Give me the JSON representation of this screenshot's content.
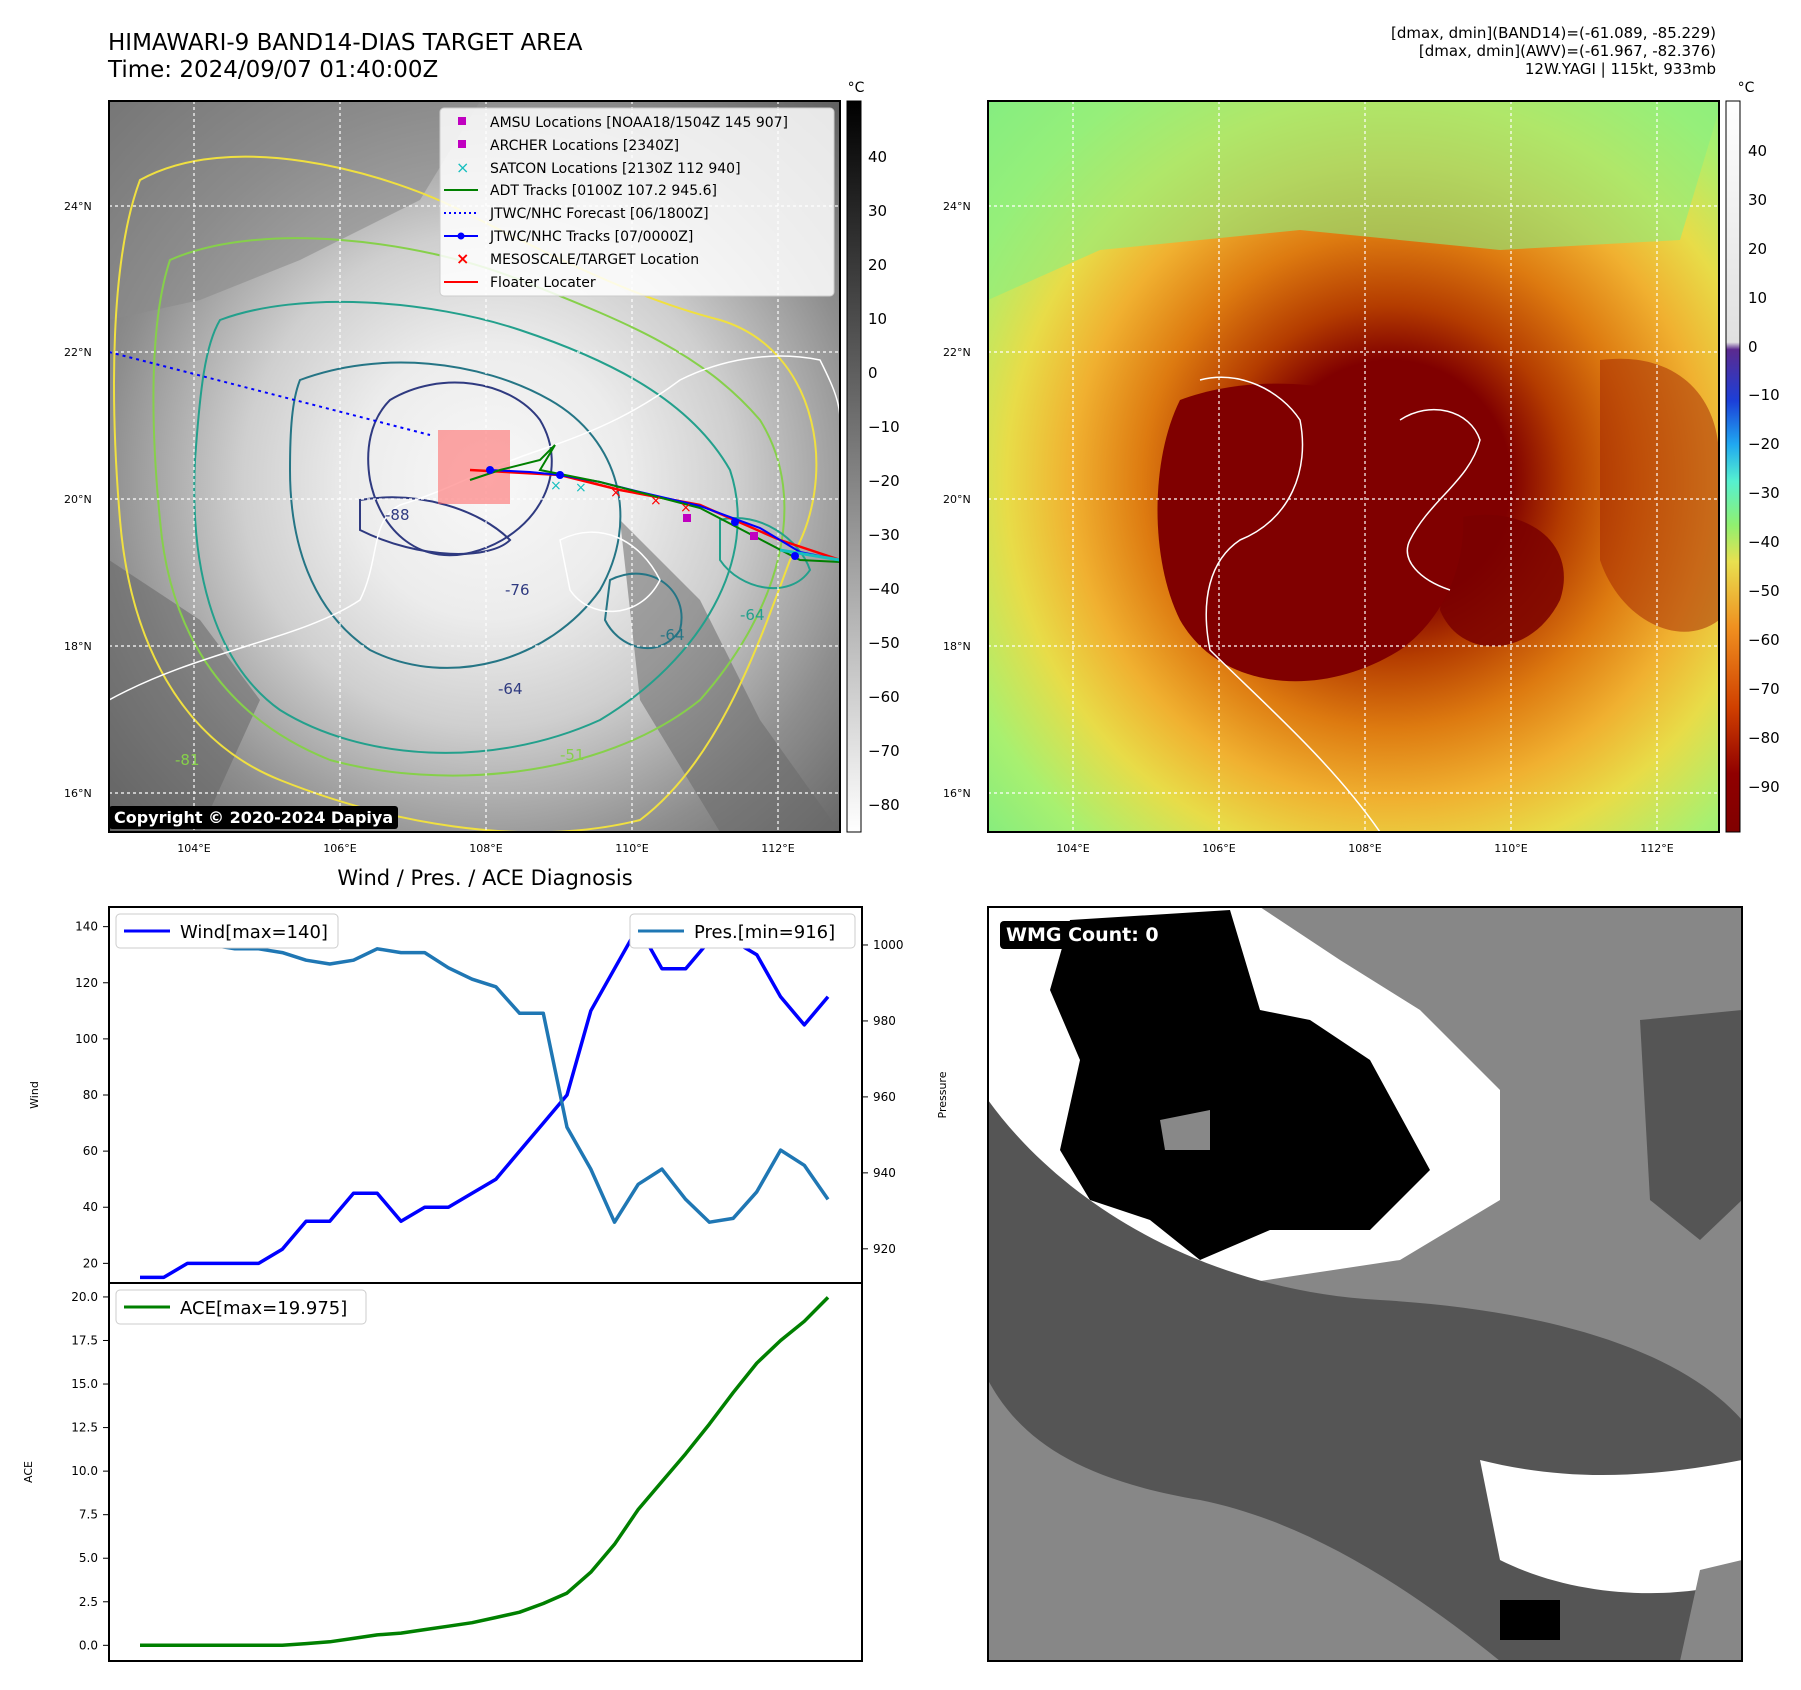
{
  "header": {
    "title_line1": "HIMAWARI-9 BAND14-DIAS TARGET AREA",
    "title_line2": "Time: 2024/09/07 01:40:00Z",
    "info_line1": "[dmax, dmin](BAND14)=(-61.089, -85.229)",
    "info_line2": "[dmax, dmin](AWV)=(-61.967, -82.376)",
    "info_line3": "12W.YAGI | 115kt, 933mb"
  },
  "map": {
    "lat_labels": [
      "24°N",
      "22°N",
      "20°N",
      "18°N",
      "16°N"
    ],
    "lon_labels": [
      "104°E",
      "106°E",
      "108°E",
      "110°E",
      "112°E"
    ],
    "copyright": "Copyright © 2020-2024 Dapiya",
    "legend": [
      {
        "label": "AMSU Locations [NOAA18/1504Z 145 907]",
        "color": "#c000c0",
        "marker": "square"
      },
      {
        "label": "ARCHER Locations [2340Z]",
        "color": "#c000c0",
        "marker": "square"
      },
      {
        "label": "SATCON Locations [2130Z 112 940]",
        "color": "#17bfbf",
        "marker": "x"
      },
      {
        "label": "ADT Tracks [0100Z 107.2 945.6]",
        "color": "#008000",
        "marker": "line"
      },
      {
        "label": "JTWC/NHC Forecast [06/1800Z]",
        "color": "#0000ff",
        "marker": "dotted"
      },
      {
        "label": "JTWC/NHC Tracks [07/0000Z]",
        "color": "#0000ff",
        "marker": "line-dot"
      },
      {
        "label": "MESOSCALE/TARGET Location",
        "color": "#ff0000",
        "marker": "x"
      },
      {
        "label": "Floater Locater",
        "color": "#ff0000",
        "marker": "line"
      }
    ],
    "contour_labels": [
      "-64",
      "-64",
      "-64",
      "-76",
      "-88",
      "-81",
      "-51"
    ],
    "cbar_unit": "°C",
    "cbar_left_ticks": [
      "40",
      "30",
      "20",
      "10",
      "0",
      "−10",
      "−20",
      "−30",
      "−40",
      "−50",
      "−60",
      "−70",
      "−80"
    ],
    "cbar_right_ticks": [
      "40",
      "30",
      "20",
      "10",
      "0",
      "−10",
      "−20",
      "−30",
      "−40",
      "−50",
      "−60",
      "−70",
      "−80",
      "−90"
    ]
  },
  "diagnosis": {
    "title": "Wind / Pres. / ACE Diagnosis",
    "wind_ylabel": "Wind",
    "pres_ylabel": "Pressure",
    "ace_ylabel": "ACE",
    "wind_legend": "Wind[max=140]",
    "pres_legend": "Pres.[min=916]",
    "ace_legend": "ACE[max=19.975]",
    "wmg_label": "WMG Count: 0",
    "colors": {
      "wind": "#0000ff",
      "pres": "#1f77b4",
      "ace": "#008000"
    }
  },
  "chart_data": [
    {
      "type": "line",
      "title": "Wind / Pres. / ACE Diagnosis",
      "ylabel": "Wind",
      "ylim": [
        13,
        147
      ],
      "yticks": [
        20,
        40,
        60,
        80,
        100,
        120,
        140
      ],
      "series": [
        {
          "name": "Wind[max=140]",
          "axis": "left",
          "values": [
            15,
            15,
            20,
            20,
            20,
            20,
            25,
            35,
            35,
            45,
            45,
            35,
            40,
            40,
            45,
            50,
            60,
            70,
            80,
            110,
            125,
            140,
            125,
            125,
            135,
            135,
            130,
            115,
            105,
            115
          ]
        },
        {
          "name": "Pres.[min=916]",
          "axis": "right",
          "values": [
            1001,
            1001,
            1000,
            1000,
            999,
            999,
            998,
            996,
            995,
            996,
            999,
            998,
            998,
            994,
            991,
            989,
            982,
            982,
            952,
            941,
            927,
            937,
            941,
            933,
            927,
            928,
            935,
            946,
            942,
            933
          ]
        }
      ],
      "y2label": "Pressure",
      "y2lim": [
        911,
        1010
      ],
      "y2ticks": [
        920,
        940,
        960,
        980,
        1000
      ]
    },
    {
      "type": "line",
      "ylabel": "ACE",
      "ylim": [
        -0.9,
        20.8
      ],
      "yticks": [
        "0.0",
        "2.5",
        "5.0",
        "7.5",
        "10.0",
        "12.5",
        "15.0",
        "17.5",
        "20.0"
      ],
      "series": [
        {
          "name": "ACE[max=19.975]",
          "values": [
            0,
            0,
            0,
            0,
            0,
            0,
            0,
            0.1,
            0.2,
            0.4,
            0.6,
            0.7,
            0.9,
            1.1,
            1.3,
            1.6,
            1.9,
            2.4,
            3.0,
            4.2,
            5.8,
            7.8,
            9.4,
            11.0,
            12.7,
            14.5,
            16.2,
            17.5,
            18.6,
            19.975
          ]
        }
      ]
    }
  ]
}
